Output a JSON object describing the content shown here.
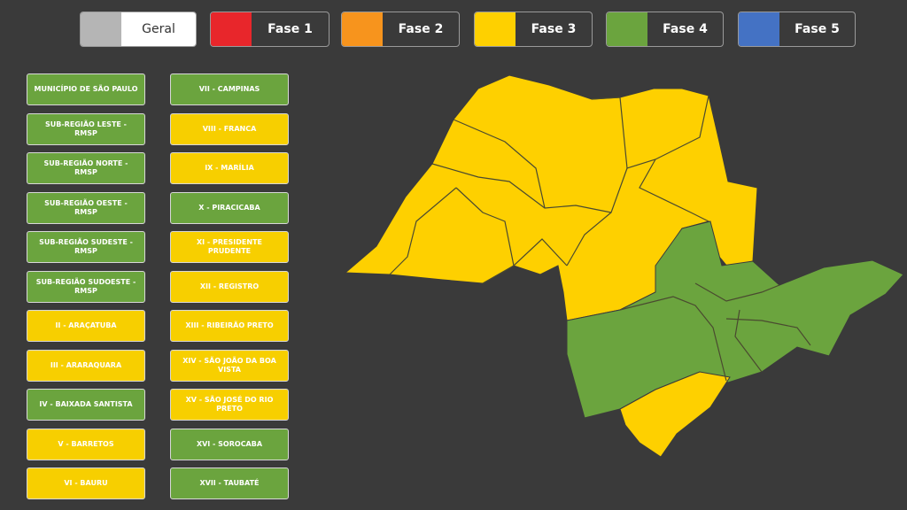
{
  "legend": [
    {
      "label": "Geral",
      "color": "#b5b5b5"
    },
    {
      "label": "Fase 1",
      "color": "#e8262b"
    },
    {
      "label": "Fase 2",
      "color": "#f7941d"
    },
    {
      "label": "Fase 3",
      "color": "#fed000"
    },
    {
      "label": "Fase 4",
      "color": "#6ba43e"
    },
    {
      "label": "Fase 5",
      "color": "#4472c4"
    }
  ],
  "regions_left": [
    {
      "label": "Município de São Paulo",
      "phase": 4
    },
    {
      "label": "Sub-região Leste - RMSP",
      "phase": 4
    },
    {
      "label": "Sub-região Norte - RMSP",
      "phase": 4
    },
    {
      "label": "Sub-região Oeste - RMSP",
      "phase": 4
    },
    {
      "label": "Sub-região Sudeste - RMSP",
      "phase": 4
    },
    {
      "label": "Sub-região Sudoeste - RMSP",
      "phase": 4
    },
    {
      "label": "II - Araçatuba",
      "phase": 3
    },
    {
      "label": "III - Araraquara",
      "phase": 3
    },
    {
      "label": "IV - Baixada Santista",
      "phase": 4
    },
    {
      "label": "V - Barretos",
      "phase": 3
    },
    {
      "label": "VI - Bauru",
      "phase": 3
    }
  ],
  "regions_right": [
    {
      "label": "VII - Campinas",
      "phase": 4
    },
    {
      "label": "VIII - Franca",
      "phase": 3
    },
    {
      "label": "IX - Marília",
      "phase": 3
    },
    {
      "label": "X - Piracicaba",
      "phase": 4
    },
    {
      "label": "XI - Presidente Prudente",
      "phase": 3
    },
    {
      "label": "XII - Registro",
      "phase": 3
    },
    {
      "label": "XIII - Ribeirão Preto",
      "phase": 3
    },
    {
      "label": "XIV - São João da Boa Vista",
      "phase": 3
    },
    {
      "label": "XV - São José do Rio Preto",
      "phase": 3
    },
    {
      "label": "XVI - Sorocaba",
      "phase": 4
    },
    {
      "label": "XVII - Taubaté",
      "phase": 4
    }
  ],
  "colors": {
    "fase3": "#fed000",
    "fase4": "#6ba43e",
    "background": "#3a3a3a"
  }
}
